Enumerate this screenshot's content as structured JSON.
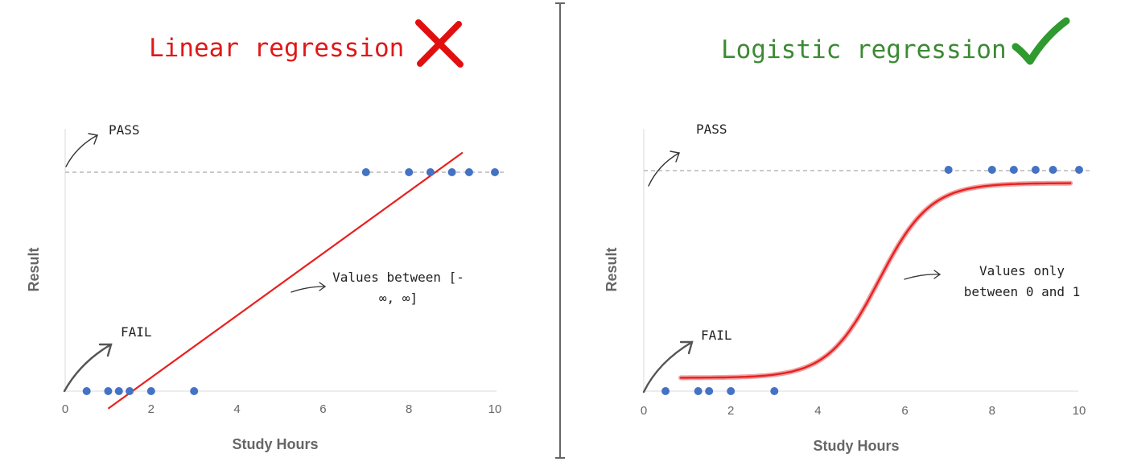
{
  "colors": {
    "left_title": "#e01818",
    "right_title": "#3c8a34",
    "points": "#4472c4",
    "fit_line": "#e82020",
    "cross_mark": "#e01010",
    "check_mark": "#2f9a2f",
    "divider": "#666666",
    "dashed": "#a9a9a9"
  },
  "icons": {
    "left_mark": "cross-mark-icon",
    "right_mark": "check-mark-icon"
  },
  "chart_data": [
    {
      "type": "scatter",
      "title": "Linear regression",
      "xlabel": "Study Hours",
      "ylabel": "Result",
      "xlim": [
        0,
        10
      ],
      "xticks": [
        0,
        2,
        4,
        6,
        8,
        10
      ],
      "ylim": [
        0,
        1
      ],
      "grid": false,
      "series": [
        {
          "points": [
            [
              0.5,
              0
            ],
            [
              1,
              0
            ],
            [
              1.25,
              0
            ],
            [
              1.5,
              0
            ],
            [
              2,
              0
            ],
            [
              3,
              0
            ],
            [
              7,
              1
            ],
            [
              8,
              1
            ],
            [
              8.5,
              1
            ],
            [
              9,
              1
            ],
            [
              9.4,
              1
            ],
            [
              10,
              1
            ]
          ]
        }
      ],
      "fit": {
        "kind": "linear",
        "x": [
          1.0,
          9.25
        ],
        "y": [
          -0.08,
          1.09
        ]
      },
      "annotations": {
        "pass": "PASS",
        "fail": "FAIL",
        "values": "Values between [-∞, ∞]"
      }
    },
    {
      "type": "scatter",
      "title": "Logistic regression",
      "xlabel": "Study Hours",
      "ylabel": "Result",
      "xlim": [
        0,
        10
      ],
      "xticks": [
        0,
        2,
        4,
        6,
        8,
        10
      ],
      "ylim": [
        0,
        1
      ],
      "grid": false,
      "series": [
        {
          "points": [
            [
              0.5,
              0
            ],
            [
              1.25,
              0
            ],
            [
              1.5,
              0
            ],
            [
              2,
              0
            ],
            [
              3,
              0
            ],
            [
              7,
              1
            ],
            [
              8,
              1
            ],
            [
              8.5,
              1
            ],
            [
              9,
              1
            ],
            [
              9.4,
              1
            ],
            [
              10,
              1
            ]
          ]
        }
      ],
      "fit": {
        "kind": "logistic",
        "x_range": [
          0.85,
          9.8
        ],
        "low": 0.06,
        "high": 0.94,
        "midpoint": 5.4,
        "steepness": 1.7
      },
      "annotations": {
        "pass": "PASS",
        "fail": "FAIL",
        "values": "Values only between 0 and 1"
      }
    }
  ]
}
